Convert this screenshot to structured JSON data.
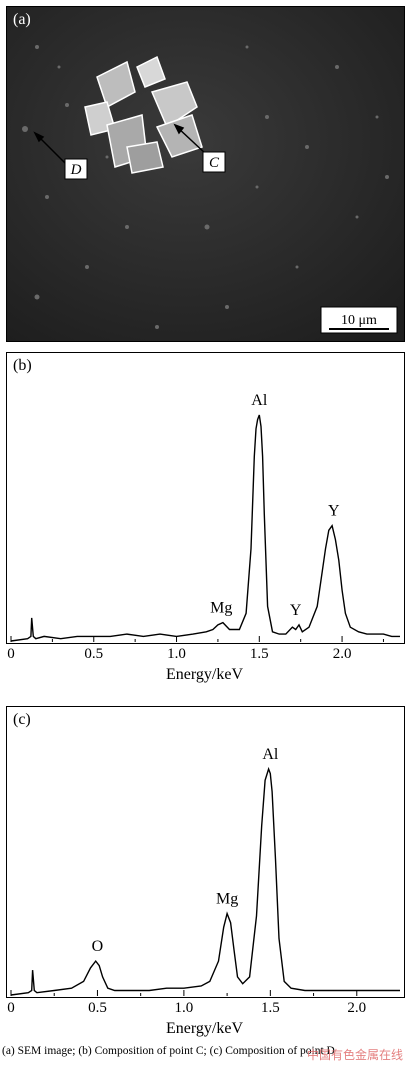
{
  "panels": {
    "a": {
      "label": "(a)",
      "scale_bar": "10 μm",
      "annotations": [
        {
          "name": "point-d-label",
          "text": "D"
        },
        {
          "name": "point-c-label",
          "text": "C"
        }
      ]
    },
    "b": {
      "label": "(b)"
    },
    "c": {
      "label": "(c)"
    }
  },
  "caption": "(a) SEM image; (b) Composition of point C; (c) Composition of point D",
  "watermark": "中国有色金属在线",
  "chart_data": [
    {
      "type": "line",
      "panel": "(b)",
      "xlabel": "Energy/keV",
      "ylabel": "",
      "xlim": [
        0,
        2.35
      ],
      "xticks": [
        "0",
        "0.5",
        "1.0",
        "1.5",
        "2.0"
      ],
      "x": [
        0.0,
        0.1,
        0.12,
        0.125,
        0.135,
        0.15,
        0.2,
        0.3,
        0.4,
        0.5,
        0.6,
        0.7,
        0.8,
        0.9,
        1.0,
        1.1,
        1.18,
        1.22,
        1.25,
        1.28,
        1.32,
        1.38,
        1.42,
        1.45,
        1.47,
        1.48,
        1.49,
        1.5,
        1.51,
        1.52,
        1.53,
        1.55,
        1.58,
        1.62,
        1.66,
        1.7,
        1.72,
        1.74,
        1.76,
        1.8,
        1.85,
        1.88,
        1.9,
        1.92,
        1.94,
        1.96,
        1.98,
        2.0,
        2.02,
        2.05,
        2.1,
        2.15,
        2.2,
        2.25,
        2.3,
        2.35
      ],
      "values": [
        0,
        1,
        2,
        10,
        2,
        1,
        2,
        1,
        2,
        2,
        2,
        3,
        2,
        3,
        2,
        3,
        4,
        5,
        7,
        8,
        5,
        5,
        12,
        40,
        80,
        92,
        96,
        98,
        93,
        80,
        55,
        15,
        4,
        3,
        3,
        6,
        5,
        7,
        4,
        6,
        15,
        30,
        40,
        48,
        50,
        44,
        35,
        22,
        12,
        6,
        4,
        3,
        3,
        3,
        2,
        2
      ],
      "peak_labels": [
        {
          "text": "Mg",
          "x": 1.27
        },
        {
          "text": "Al",
          "x": 1.5
        },
        {
          "text": "Y",
          "x": 1.72
        },
        {
          "text": "Y",
          "x": 1.95
        }
      ]
    },
    {
      "type": "line",
      "panel": "(c)",
      "xlabel": "Energy/keV",
      "ylabel": "",
      "xlim": [
        0,
        2.25
      ],
      "xticks": [
        "0",
        "0.5",
        "1.0",
        "1.5",
        "2.0"
      ],
      "x": [
        0.0,
        0.1,
        0.12,
        0.125,
        0.135,
        0.15,
        0.25,
        0.35,
        0.42,
        0.46,
        0.49,
        0.51,
        0.53,
        0.56,
        0.6,
        0.7,
        0.8,
        0.9,
        1.0,
        1.1,
        1.15,
        1.2,
        1.23,
        1.25,
        1.27,
        1.29,
        1.31,
        1.34,
        1.38,
        1.42,
        1.45,
        1.47,
        1.49,
        1.5,
        1.51,
        1.53,
        1.55,
        1.58,
        1.62,
        1.7,
        1.8,
        1.9,
        2.0,
        2.1,
        2.2,
        2.25
      ],
      "values": [
        0,
        1,
        2,
        11,
        2,
        1,
        2,
        3,
        6,
        12,
        15,
        13,
        8,
        3,
        2,
        2,
        2,
        3,
        3,
        4,
        6,
        15,
        30,
        36,
        32,
        20,
        8,
        5,
        8,
        35,
        75,
        95,
        100,
        98,
        90,
        60,
        25,
        6,
        3,
        2,
        2,
        2,
        2,
        2,
        2,
        2
      ],
      "peak_labels": [
        {
          "text": "O",
          "x": 0.5
        },
        {
          "text": "Mg",
          "x": 1.25
        },
        {
          "text": "Al",
          "x": 1.5
        }
      ]
    }
  ],
  "colors": {
    "sem_background": "#2a2a2a",
    "crystal": "#d0d0d0"
  }
}
